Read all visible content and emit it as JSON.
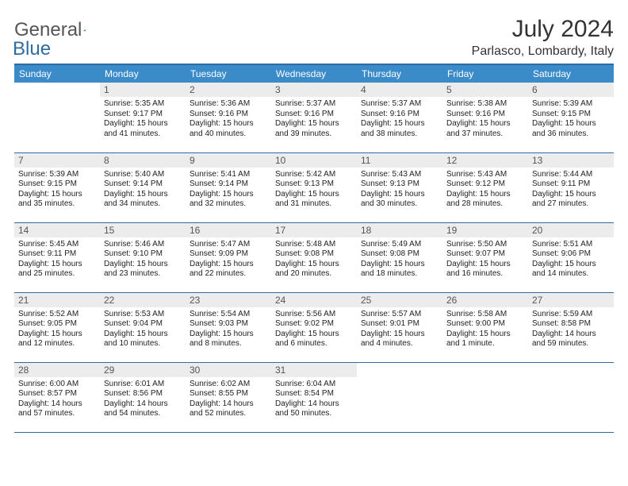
{
  "logo": {
    "general": "General",
    "blue": "Blue"
  },
  "title": "July 2024",
  "location": "Parlasco, Lombardy, Italy",
  "colors": {
    "header_bg": "#3b8bc9",
    "border": "#2f6ca3",
    "daynum_bg": "#ececec",
    "text": "#323232"
  },
  "weekdays": [
    "Sunday",
    "Monday",
    "Tuesday",
    "Wednesday",
    "Thursday",
    "Friday",
    "Saturday"
  ],
  "weeks": [
    [
      null,
      {
        "n": "1",
        "sr": "5:35 AM",
        "ss": "9:17 PM",
        "dl": "15 hours and 41 minutes."
      },
      {
        "n": "2",
        "sr": "5:36 AM",
        "ss": "9:16 PM",
        "dl": "15 hours and 40 minutes."
      },
      {
        "n": "3",
        "sr": "5:37 AM",
        "ss": "9:16 PM",
        "dl": "15 hours and 39 minutes."
      },
      {
        "n": "4",
        "sr": "5:37 AM",
        "ss": "9:16 PM",
        "dl": "15 hours and 38 minutes."
      },
      {
        "n": "5",
        "sr": "5:38 AM",
        "ss": "9:16 PM",
        "dl": "15 hours and 37 minutes."
      },
      {
        "n": "6",
        "sr": "5:39 AM",
        "ss": "9:15 PM",
        "dl": "15 hours and 36 minutes."
      }
    ],
    [
      {
        "n": "7",
        "sr": "5:39 AM",
        "ss": "9:15 PM",
        "dl": "15 hours and 35 minutes."
      },
      {
        "n": "8",
        "sr": "5:40 AM",
        "ss": "9:14 PM",
        "dl": "15 hours and 34 minutes."
      },
      {
        "n": "9",
        "sr": "5:41 AM",
        "ss": "9:14 PM",
        "dl": "15 hours and 32 minutes."
      },
      {
        "n": "10",
        "sr": "5:42 AM",
        "ss": "9:13 PM",
        "dl": "15 hours and 31 minutes."
      },
      {
        "n": "11",
        "sr": "5:43 AM",
        "ss": "9:13 PM",
        "dl": "15 hours and 30 minutes."
      },
      {
        "n": "12",
        "sr": "5:43 AM",
        "ss": "9:12 PM",
        "dl": "15 hours and 28 minutes."
      },
      {
        "n": "13",
        "sr": "5:44 AM",
        "ss": "9:11 PM",
        "dl": "15 hours and 27 minutes."
      }
    ],
    [
      {
        "n": "14",
        "sr": "5:45 AM",
        "ss": "9:11 PM",
        "dl": "15 hours and 25 minutes."
      },
      {
        "n": "15",
        "sr": "5:46 AM",
        "ss": "9:10 PM",
        "dl": "15 hours and 23 minutes."
      },
      {
        "n": "16",
        "sr": "5:47 AM",
        "ss": "9:09 PM",
        "dl": "15 hours and 22 minutes."
      },
      {
        "n": "17",
        "sr": "5:48 AM",
        "ss": "9:08 PM",
        "dl": "15 hours and 20 minutes."
      },
      {
        "n": "18",
        "sr": "5:49 AM",
        "ss": "9:08 PM",
        "dl": "15 hours and 18 minutes."
      },
      {
        "n": "19",
        "sr": "5:50 AM",
        "ss": "9:07 PM",
        "dl": "15 hours and 16 minutes."
      },
      {
        "n": "20",
        "sr": "5:51 AM",
        "ss": "9:06 PM",
        "dl": "15 hours and 14 minutes."
      }
    ],
    [
      {
        "n": "21",
        "sr": "5:52 AM",
        "ss": "9:05 PM",
        "dl": "15 hours and 12 minutes."
      },
      {
        "n": "22",
        "sr": "5:53 AM",
        "ss": "9:04 PM",
        "dl": "15 hours and 10 minutes."
      },
      {
        "n": "23",
        "sr": "5:54 AM",
        "ss": "9:03 PM",
        "dl": "15 hours and 8 minutes."
      },
      {
        "n": "24",
        "sr": "5:56 AM",
        "ss": "9:02 PM",
        "dl": "15 hours and 6 minutes."
      },
      {
        "n": "25",
        "sr": "5:57 AM",
        "ss": "9:01 PM",
        "dl": "15 hours and 4 minutes."
      },
      {
        "n": "26",
        "sr": "5:58 AM",
        "ss": "9:00 PM",
        "dl": "15 hours and 1 minute."
      },
      {
        "n": "27",
        "sr": "5:59 AM",
        "ss": "8:58 PM",
        "dl": "14 hours and 59 minutes."
      }
    ],
    [
      {
        "n": "28",
        "sr": "6:00 AM",
        "ss": "8:57 PM",
        "dl": "14 hours and 57 minutes."
      },
      {
        "n": "29",
        "sr": "6:01 AM",
        "ss": "8:56 PM",
        "dl": "14 hours and 54 minutes."
      },
      {
        "n": "30",
        "sr": "6:02 AM",
        "ss": "8:55 PM",
        "dl": "14 hours and 52 minutes."
      },
      {
        "n": "31",
        "sr": "6:04 AM",
        "ss": "8:54 PM",
        "dl": "14 hours and 50 minutes."
      },
      null,
      null,
      null
    ]
  ],
  "labels": {
    "sunrise": "Sunrise:",
    "sunset": "Sunset:",
    "daylight": "Daylight:"
  }
}
